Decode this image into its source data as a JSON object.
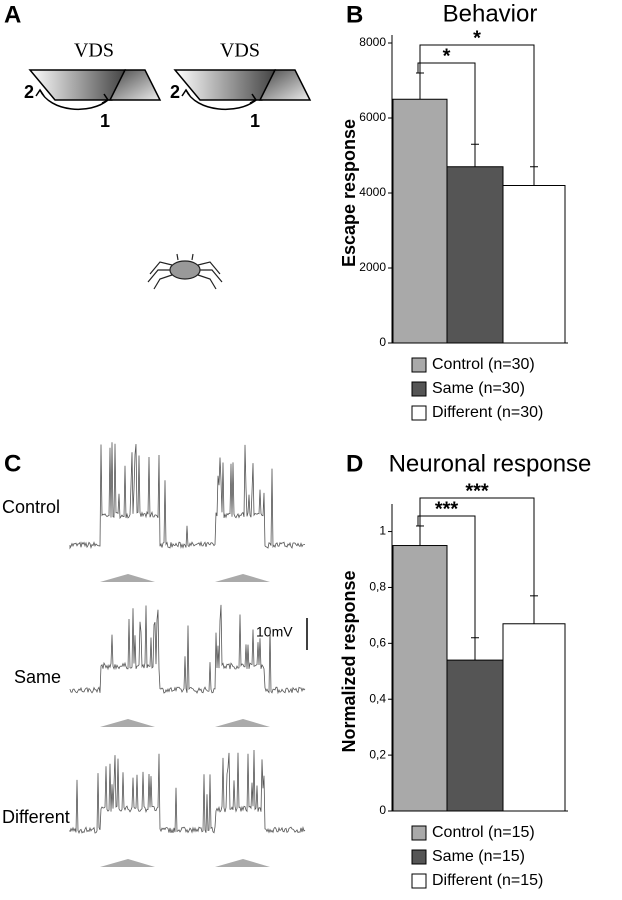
{
  "panel_labels": [
    "A",
    "B",
    "C",
    "D"
  ],
  "stimulus": {
    "label": "VDS",
    "start": "2",
    "end": "1"
  },
  "traces": {
    "conditions": [
      "Control",
      "Same",
      "Different"
    ],
    "scale_bar": "10mV"
  },
  "chart_data": [
    {
      "type": "bar",
      "title": "Behavior",
      "ylabel": "Escape response",
      "categories": [
        "Control (n=30)",
        "Same (n=30)",
        "Different (n=30)"
      ],
      "values": [
        6500,
        4700,
        4200
      ],
      "errors": [
        700,
        600,
        500
      ],
      "colors": [
        "#a9a9a9",
        "#555555",
        "#ffffff"
      ],
      "ylim": [
        0,
        8000
      ],
      "yticks": [
        0,
        2000,
        4000,
        6000,
        8000
      ],
      "annotations": [
        "*",
        "*"
      ]
    },
    {
      "type": "bar",
      "title": "Neuronal response",
      "ylabel": "Normalized response",
      "categories": [
        "Control (n=15)",
        "Same (n=15)",
        "Different (n=15)"
      ],
      "values": [
        0.95,
        0.54,
        0.67
      ],
      "errors": [
        0.07,
        0.08,
        0.1
      ],
      "colors": [
        "#a9a9a9",
        "#555555",
        "#ffffff"
      ],
      "ylim": [
        0,
        1.07
      ],
      "yticks": [
        0,
        {
          "value": 0.2,
          "label": "0,2"
        },
        {
          "value": 0.4,
          "label": "0,4"
        },
        {
          "value": 0.6,
          "label": "0,6"
        },
        {
          "value": 0.8,
          "label": "0,8"
        },
        1
      ],
      "annotations": [
        "***",
        "***"
      ]
    }
  ]
}
